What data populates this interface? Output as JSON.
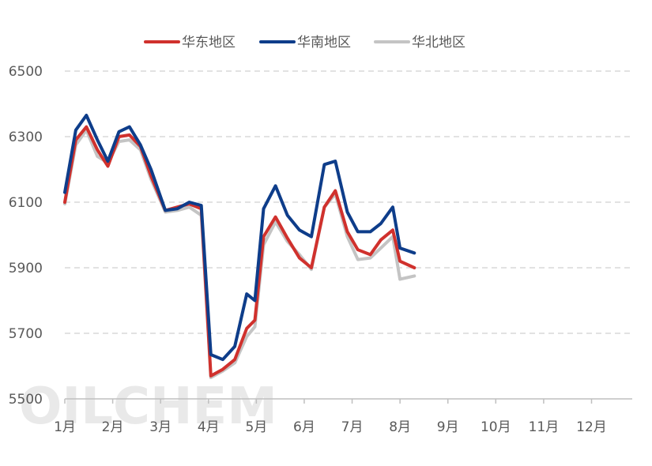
{
  "chart_data": {
    "type": "line",
    "title": "",
    "xlabel": "",
    "ylabel": "",
    "ylim": [
      5500,
      6500
    ],
    "y_ticks": [
      5500,
      5700,
      5900,
      6100,
      6300,
      6500
    ],
    "y_tick_labels": [
      "5500",
      "5700",
      "5900",
      "6100",
      "6300",
      "6500"
    ],
    "x_range": [
      1,
      12.85
    ],
    "x_ticks": [
      1,
      2,
      3,
      4,
      5,
      6,
      7,
      8,
      9,
      10,
      11,
      12
    ],
    "x_tick_labels": [
      "1月",
      "2月",
      "3月",
      "4月",
      "5月",
      "6月",
      "7月",
      "8月",
      "9月",
      "10月",
      "11月",
      "12月"
    ],
    "grid": "horizontal dashed",
    "legend_position": "top",
    "watermark": "OILCHEM",
    "x": [
      1.0,
      1.23,
      1.45,
      1.68,
      1.9,
      2.13,
      2.35,
      2.58,
      2.8,
      3.1,
      3.35,
      3.6,
      3.85,
      4.05,
      4.3,
      4.55,
      4.8,
      4.97,
      5.15,
      5.4,
      5.65,
      5.9,
      6.15,
      6.42,
      6.65,
      6.9,
      7.12,
      7.38,
      7.6,
      7.85,
      8.0,
      8.3
    ],
    "series": [
      {
        "name": "华东地区",
        "color": "#d0312d",
        "values": [
          6100,
          6290,
          6330,
          6260,
          6210,
          6300,
          6305,
          6270,
          6180,
          6075,
          6085,
          6095,
          6080,
          5570,
          5590,
          5620,
          5715,
          5740,
          5995,
          6055,
          5990,
          5930,
          5900,
          6085,
          6135,
          6010,
          5955,
          5940,
          5985,
          6015,
          5920,
          5900
        ]
      },
      {
        "name": "华南地区",
        "color": "#0e3d8a",
        "values": [
          6130,
          6320,
          6365,
          6290,
          6225,
          6315,
          6330,
          6275,
          6200,
          6075,
          6080,
          6100,
          6090,
          5635,
          5620,
          5660,
          5820,
          5800,
          6080,
          6150,
          6060,
          6015,
          5995,
          6215,
          6225,
          6070,
          6010,
          6010,
          6035,
          6085,
          5960,
          5945
        ]
      },
      {
        "name": "华北地区",
        "color": "#c4c4c4",
        "values": [
          6095,
          6275,
          6320,
          6240,
          6220,
          6285,
          6290,
          6260,
          6170,
          6070,
          6075,
          6085,
          6060,
          5565,
          5585,
          5610,
          5690,
          5720,
          5970,
          6040,
          5980,
          5940,
          5895,
          6085,
          6125,
          5995,
          5925,
          5930,
          5960,
          5995,
          5865,
          5875
        ]
      }
    ]
  }
}
